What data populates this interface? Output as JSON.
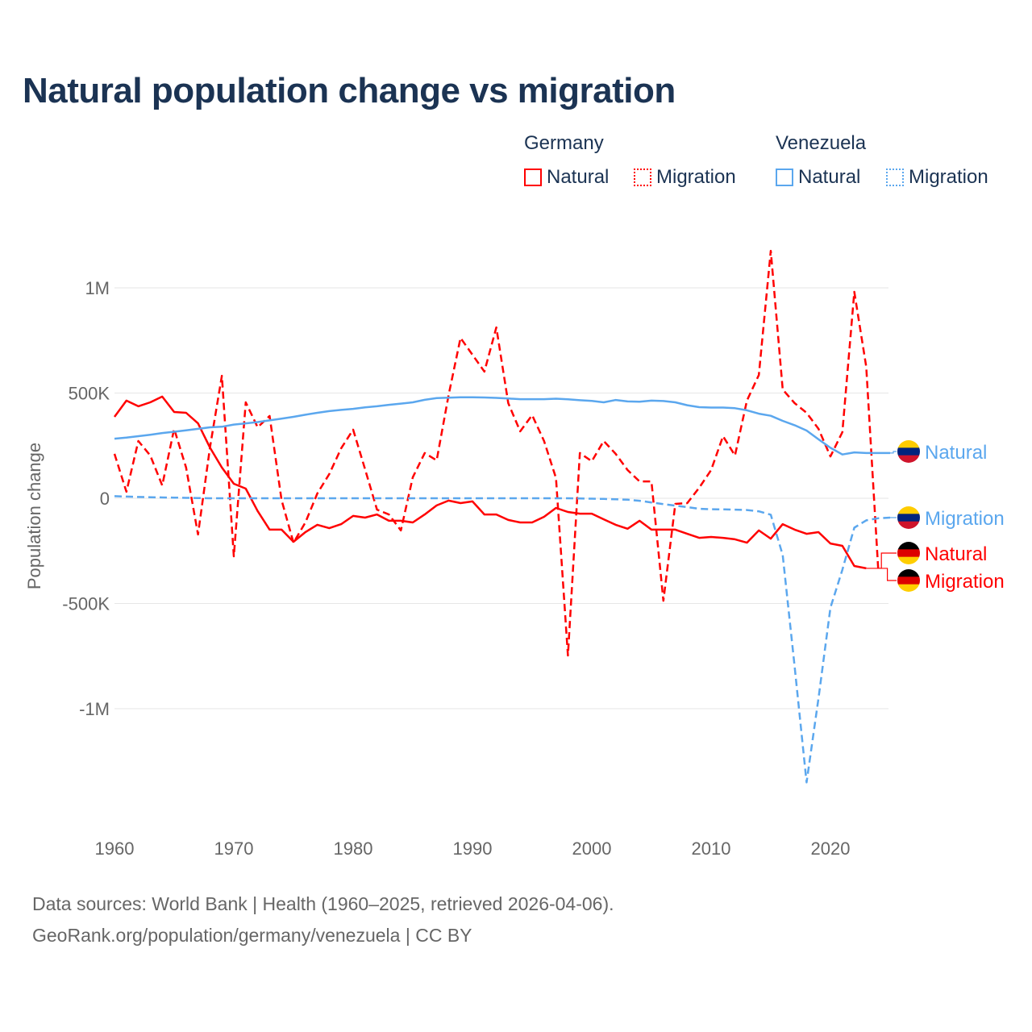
{
  "title": "Natural population change vs migration",
  "legend": {
    "groups": [
      {
        "name": "Germany",
        "items": [
          "Natural",
          "Migration"
        ]
      },
      {
        "name": "Venezuela",
        "items": [
          "Natural",
          "Migration"
        ]
      }
    ]
  },
  "footer": {
    "line1": "Data sources: World Bank | Health (1960–2025, retrieved 2026-04-06).",
    "line2": "GeoRank.org/population/germany/venezuela | CC BY"
  },
  "chart_data": {
    "type": "line",
    "title": "Natural population change vs migration",
    "xlabel": "",
    "ylabel": "Population change",
    "xlim": [
      1960,
      2025
    ],
    "ylim": [
      -1400000,
      1200000
    ],
    "x_ticks": [
      1960,
      1970,
      1980,
      1990,
      2000,
      2010,
      2020
    ],
    "x_tick_labels": [
      "1960",
      "1970",
      "1980",
      "1990",
      "2000",
      "2010",
      "2020"
    ],
    "y_ticks": [
      1000000,
      500000,
      0,
      -500000,
      -1000000
    ],
    "y_tick_labels": [
      "1M",
      "500K",
      "0",
      "-500K",
      "-1M"
    ],
    "grid": true,
    "legend_position": "top-right",
    "series": [
      {
        "name": "Germany Natural",
        "label": "Natural",
        "color": "#ff0000",
        "dash": false,
        "start": 1960,
        "values": [
          387000,
          464000,
          437000,
          456000,
          483000,
          410000,
          406000,
          356000,
          241000,
          146000,
          69000,
          46000,
          -61000,
          -149000,
          -149000,
          -207000,
          -161000,
          -126000,
          -142000,
          -123000,
          -84000,
          -92000,
          -77000,
          -107000,
          -107000,
          -115000,
          -77000,
          -34000,
          -11000,
          -23000,
          -15000,
          -77000,
          -77000,
          -103000,
          -115000,
          -115000,
          -88000,
          -46000,
          -65000,
          -73000,
          -73000,
          -100000,
          -126000,
          -145000,
          -107000,
          -149000,
          -149000,
          -149000,
          -169000,
          -188000,
          -184000,
          -188000,
          -195000,
          -211000,
          -153000,
          -192000,
          -123000,
          -149000,
          -169000,
          -161000,
          -215000,
          -226000,
          -322000,
          -333000
        ]
      },
      {
        "name": "Germany Migration",
        "label": "Migration",
        "color": "#ff0000",
        "dash": true,
        "start": 1960,
        "values": [
          211000,
          31000,
          272000,
          203000,
          61000,
          330000,
          146000,
          -172000,
          241000,
          582000,
          -276000,
          456000,
          337000,
          391000,
          -8000,
          -211000,
          -115000,
          23000,
          115000,
          238000,
          326000,
          138000,
          -54000,
          -77000,
          -153000,
          100000,
          215000,
          180000,
          490000,
          762000,
          682000,
          602000,
          812000,
          452000,
          318000,
          395000,
          272000,
          96000,
          -747000,
          215000,
          176000,
          272000,
          211000,
          134000,
          80000,
          80000,
          -487000,
          -27000,
          -23000,
          50000,
          134000,
          295000,
          203000,
          464000,
          586000,
          1176000,
          517000,
          452000,
          406000,
          330000,
          199000,
          314000,
          981000,
          625000,
          -333000
        ]
      },
      {
        "name": "Venezuela Natural",
        "label": "Natural",
        "color": "#5ba7ee",
        "dash": false,
        "start": 1960,
        "values": [
          283000,
          288000,
          295000,
          302000,
          310000,
          316000,
          323000,
          330000,
          337000,
          340000,
          350000,
          356000,
          362000,
          370000,
          378000,
          387000,
          397000,
          406000,
          414000,
          420000,
          425000,
          432000,
          437000,
          444000,
          450000,
          456000,
          468000,
          476000,
          478000,
          480000,
          480000,
          479000,
          477000,
          474000,
          471000,
          471000,
          471000,
          473000,
          470000,
          466000,
          463000,
          456000,
          467000,
          460000,
          459000,
          464000,
          462000,
          456000,
          442000,
          433000,
          431000,
          431000,
          428000,
          418000,
          402000,
          392000,
          368000,
          347000,
          322000,
          280000,
          240000,
          208000,
          218000,
          215000,
          215000,
          215000
        ]
      },
      {
        "name": "Venezuela Migration",
        "label": "Migration",
        "color": "#5ba7ee",
        "dash": true,
        "start": 1960,
        "values": [
          10000,
          8000,
          6000,
          5000,
          4000,
          3000,
          2000,
          1000,
          0,
          0,
          0,
          0,
          0,
          0,
          0,
          0,
          0,
          0,
          0,
          0,
          0,
          0,
          0,
          0,
          0,
          0,
          0,
          0,
          0,
          0,
          0,
          0,
          0,
          0,
          0,
          0,
          0,
          0,
          0,
          -1000,
          -2000,
          -3000,
          -5000,
          -7000,
          -12000,
          -20000,
          -28000,
          -35000,
          -42000,
          -50000,
          -52000,
          -53000,
          -54000,
          -56000,
          -62000,
          -78000,
          -270000,
          -800000,
          -1350000,
          -950000,
          -520000,
          -340000,
          -140000,
          -105000,
          -95000,
          -92000
        ]
      }
    ]
  }
}
